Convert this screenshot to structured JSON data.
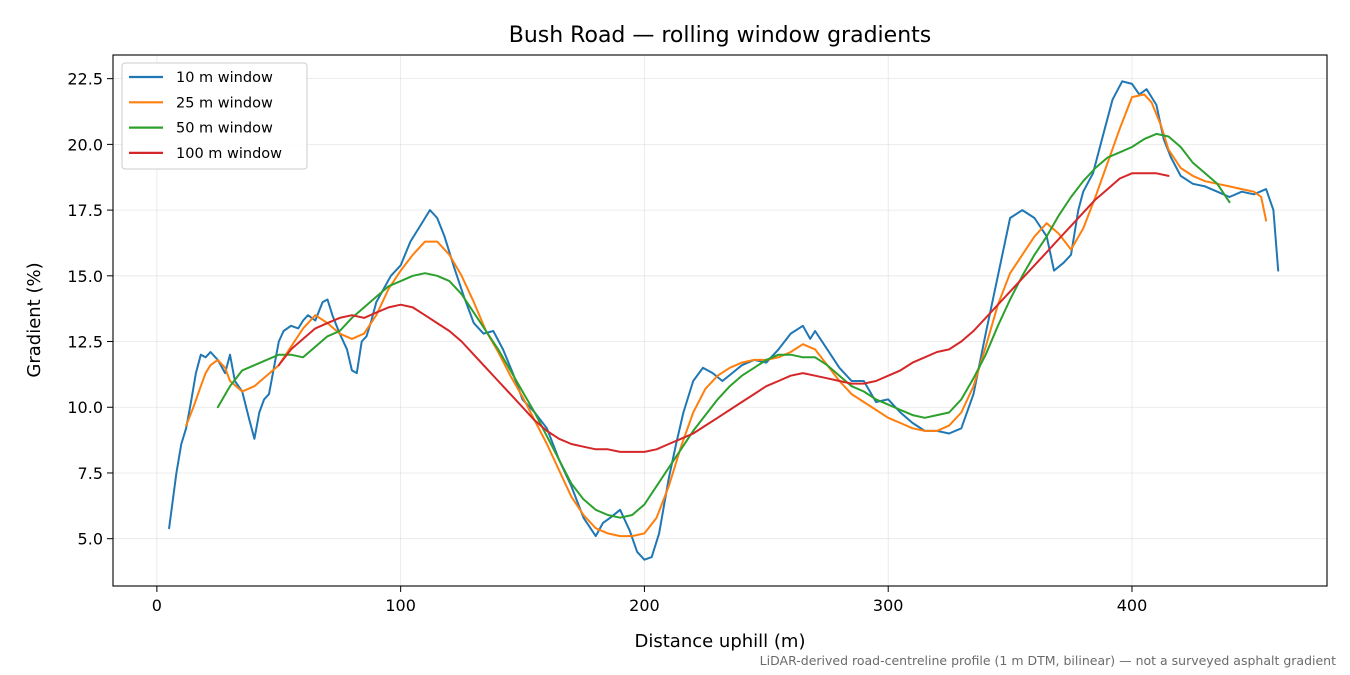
{
  "chart_data": {
    "type": "line",
    "title": "Bush Road — rolling window gradients",
    "xlabel": "Distance uphill (m)",
    "ylabel": "Gradient (%)",
    "xlim": [
      -18,
      480
    ],
    "ylim": [
      3.2,
      23.4
    ],
    "xticks": [
      0,
      100,
      200,
      300,
      400
    ],
    "yticks": [
      5.0,
      7.5,
      10.0,
      12.5,
      15.0,
      17.5,
      20.0,
      22.5
    ],
    "ytick_labels": [
      "5.0",
      "7.5",
      "10.0",
      "12.5",
      "15.0",
      "17.5",
      "20.0",
      "22.5"
    ],
    "grid": true,
    "legend_position": "upper-left",
    "footnote": "LiDAR-derived road-centreline profile (1 m DTM, bilinear) — not a surveyed asphalt gradient",
    "series": [
      {
        "name": "10 m window",
        "color": "#1f77b4",
        "x": [
          5,
          8,
          10,
          12,
          14,
          16,
          18,
          20,
          22,
          25,
          28,
          30,
          32,
          35,
          38,
          40,
          42,
          44,
          46,
          48,
          50,
          52,
          55,
          58,
          60,
          62,
          65,
          68,
          70,
          72,
          75,
          78,
          80,
          82,
          84,
          86,
          88,
          90,
          93,
          96,
          100,
          104,
          108,
          112,
          115,
          118,
          122,
          126,
          130,
          134,
          138,
          142,
          146,
          150,
          155,
          160,
          165,
          170,
          175,
          180,
          183,
          186,
          190,
          194,
          197,
          200,
          203,
          206,
          210,
          213,
          216,
          220,
          224,
          228,
          232,
          236,
          240,
          245,
          250,
          255,
          260,
          265,
          268,
          270,
          275,
          280,
          285,
          290,
          295,
          300,
          305,
          310,
          315,
          320,
          325,
          330,
          335,
          340,
          345,
          350,
          355,
          360,
          365,
          368,
          372,
          375,
          378,
          380,
          384,
          388,
          392,
          396,
          400,
          403,
          406,
          410,
          413,
          416,
          420,
          425,
          430,
          435,
          440,
          445,
          450,
          455,
          458,
          460
        ],
        "y": [
          5.4,
          7.5,
          8.6,
          9.2,
          10.2,
          11.3,
          12.0,
          11.9,
          12.1,
          11.8,
          11.3,
          12.0,
          11.0,
          10.6,
          9.5,
          8.8,
          9.8,
          10.3,
          10.5,
          11.5,
          12.5,
          12.9,
          13.1,
          13.0,
          13.3,
          13.5,
          13.3,
          14.0,
          14.1,
          13.5,
          12.8,
          12.2,
          11.4,
          11.3,
          12.5,
          12.7,
          13.3,
          14.0,
          14.5,
          15.0,
          15.4,
          16.3,
          16.9,
          17.5,
          17.2,
          16.5,
          15.3,
          14.2,
          13.2,
          12.8,
          12.9,
          12.2,
          11.3,
          10.3,
          9.8,
          9.2,
          8.0,
          7.0,
          5.8,
          5.1,
          5.6,
          5.8,
          6.1,
          5.3,
          4.5,
          4.2,
          4.3,
          5.2,
          7.3,
          8.6,
          9.8,
          11.0,
          11.5,
          11.3,
          11.0,
          11.3,
          11.6,
          11.8,
          11.7,
          12.2,
          12.8,
          13.1,
          12.6,
          12.9,
          12.2,
          11.5,
          11.0,
          11.0,
          10.2,
          10.3,
          9.8,
          9.4,
          9.1,
          9.1,
          9.0,
          9.2,
          10.5,
          12.8,
          15.0,
          17.2,
          17.5,
          17.2,
          16.5,
          15.2,
          15.5,
          15.8,
          17.5,
          18.2,
          18.9,
          20.3,
          21.7,
          22.4,
          22.3,
          21.9,
          22.1,
          21.5,
          20.2,
          19.5,
          18.8,
          18.5,
          18.4,
          18.2,
          18.0,
          18.2,
          18.1,
          18.3,
          17.5,
          15.2
        ]
      },
      {
        "name": "25 m window",
        "color": "#ff7f0e",
        "x": [
          12,
          15,
          18,
          20,
          22,
          25,
          28,
          30,
          35,
          40,
          45,
          50,
          55,
          60,
          65,
          70,
          75,
          80,
          85,
          90,
          95,
          100,
          105,
          110,
          115,
          120,
          125,
          130,
          135,
          140,
          145,
          150,
          155,
          160,
          165,
          170,
          175,
          180,
          185,
          190,
          195,
          200,
          205,
          210,
          215,
          220,
          225,
          230,
          235,
          240,
          245,
          250,
          255,
          260,
          265,
          270,
          275,
          280,
          285,
          290,
          295,
          300,
          305,
          310,
          315,
          320,
          325,
          330,
          335,
          340,
          345,
          350,
          355,
          360,
          365,
          370,
          375,
          380,
          385,
          390,
          395,
          400,
          405,
          408,
          412,
          415,
          420,
          425,
          430,
          435,
          440,
          445,
          450,
          453,
          455
        ],
        "y": [
          9.3,
          10.0,
          10.8,
          11.3,
          11.6,
          11.8,
          11.5,
          11.0,
          10.6,
          10.8,
          11.2,
          11.6,
          12.3,
          13.0,
          13.5,
          13.2,
          12.8,
          12.6,
          12.8,
          13.5,
          14.5,
          15.2,
          15.8,
          16.3,
          16.3,
          15.8,
          15.0,
          14.0,
          12.9,
          12.1,
          11.2,
          10.4,
          9.5,
          8.6,
          7.6,
          6.6,
          5.9,
          5.4,
          5.2,
          5.1,
          5.1,
          5.2,
          5.8,
          7.0,
          8.5,
          9.8,
          10.7,
          11.2,
          11.5,
          11.7,
          11.8,
          11.8,
          11.9,
          12.1,
          12.4,
          12.2,
          11.6,
          11.0,
          10.5,
          10.2,
          9.9,
          9.6,
          9.4,
          9.2,
          9.1,
          9.1,
          9.3,
          9.8,
          10.8,
          12.3,
          13.9,
          15.1,
          15.8,
          16.5,
          17.0,
          16.6,
          16.0,
          16.8,
          18.0,
          19.3,
          20.6,
          21.8,
          21.9,
          21.6,
          20.7,
          19.8,
          19.1,
          18.8,
          18.6,
          18.5,
          18.4,
          18.3,
          18.2,
          18.0,
          17.1
        ]
      },
      {
        "name": "50 m window",
        "color": "#2ca02c",
        "x": [
          25,
          30,
          35,
          40,
          45,
          50,
          55,
          60,
          65,
          70,
          75,
          80,
          85,
          90,
          95,
          100,
          105,
          110,
          115,
          120,
          125,
          130,
          135,
          140,
          145,
          150,
          155,
          160,
          165,
          170,
          175,
          180,
          185,
          190,
          195,
          200,
          205,
          210,
          215,
          220,
          225,
          230,
          235,
          240,
          245,
          250,
          255,
          260,
          265,
          270,
          275,
          280,
          285,
          290,
          295,
          300,
          305,
          310,
          315,
          320,
          325,
          330,
          335,
          340,
          345,
          350,
          355,
          360,
          365,
          370,
          375,
          380,
          385,
          390,
          395,
          400,
          405,
          410,
          415,
          420,
          425,
          430,
          435,
          440
        ],
        "y": [
          10.0,
          10.8,
          11.4,
          11.6,
          11.8,
          12.0,
          12.0,
          11.9,
          12.3,
          12.7,
          12.9,
          13.4,
          13.8,
          14.2,
          14.6,
          14.8,
          15.0,
          15.1,
          15.0,
          14.8,
          14.3,
          13.6,
          12.9,
          12.2,
          11.4,
          10.6,
          9.8,
          8.9,
          8.0,
          7.1,
          6.5,
          6.1,
          5.9,
          5.8,
          5.9,
          6.3,
          7.0,
          7.7,
          8.4,
          9.1,
          9.7,
          10.3,
          10.8,
          11.2,
          11.5,
          11.8,
          12.0,
          12.0,
          11.9,
          11.9,
          11.6,
          11.2,
          10.8,
          10.6,
          10.3,
          10.1,
          9.9,
          9.7,
          9.6,
          9.7,
          9.8,
          10.3,
          11.1,
          12.0,
          13.1,
          14.1,
          15.0,
          15.8,
          16.5,
          17.3,
          18.0,
          18.6,
          19.1,
          19.5,
          19.7,
          19.9,
          20.2,
          20.4,
          20.3,
          19.9,
          19.3,
          18.9,
          18.5,
          17.8
        ]
      },
      {
        "name": "100 m window",
        "color": "#d62728",
        "x": [
          50,
          55,
          60,
          65,
          70,
          75,
          80,
          85,
          90,
          95,
          100,
          105,
          110,
          115,
          120,
          125,
          130,
          135,
          140,
          145,
          150,
          155,
          160,
          165,
          170,
          175,
          180,
          185,
          190,
          195,
          200,
          205,
          210,
          215,
          220,
          225,
          230,
          235,
          240,
          245,
          250,
          255,
          260,
          265,
          270,
          275,
          280,
          285,
          290,
          295,
          300,
          305,
          310,
          315,
          320,
          325,
          330,
          335,
          340,
          345,
          350,
          355,
          360,
          365,
          370,
          375,
          380,
          385,
          390,
          395,
          400,
          405,
          410,
          415
        ],
        "y": [
          11.6,
          12.2,
          12.6,
          13.0,
          13.2,
          13.4,
          13.5,
          13.4,
          13.6,
          13.8,
          13.9,
          13.8,
          13.5,
          13.2,
          12.9,
          12.5,
          12.0,
          11.5,
          11.0,
          10.5,
          10.0,
          9.5,
          9.1,
          8.8,
          8.6,
          8.5,
          8.4,
          8.4,
          8.3,
          8.3,
          8.3,
          8.4,
          8.6,
          8.8,
          9.0,
          9.3,
          9.6,
          9.9,
          10.2,
          10.5,
          10.8,
          11.0,
          11.2,
          11.3,
          11.2,
          11.1,
          11.0,
          10.9,
          10.9,
          11.0,
          11.2,
          11.4,
          11.7,
          11.9,
          12.1,
          12.2,
          12.5,
          12.9,
          13.4,
          13.9,
          14.4,
          14.9,
          15.4,
          15.9,
          16.4,
          16.9,
          17.4,
          17.9,
          18.3,
          18.7,
          18.9,
          18.9,
          18.9,
          18.8
        ]
      }
    ]
  }
}
